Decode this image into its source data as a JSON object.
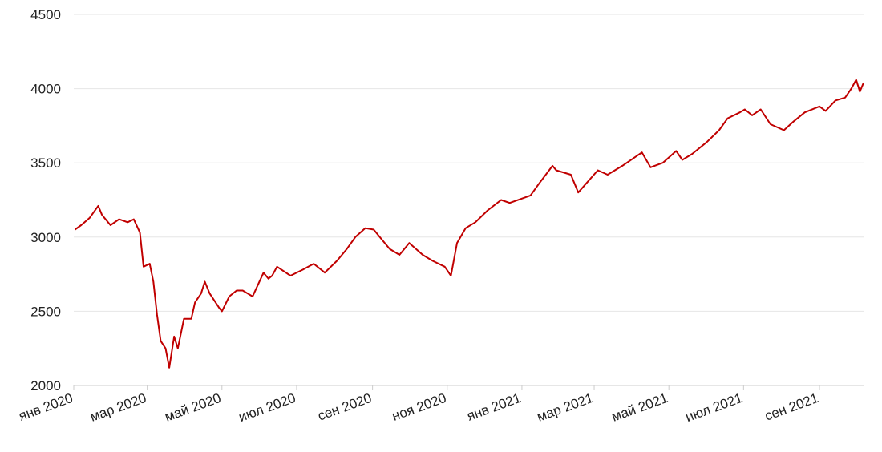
{
  "colors": {
    "series": "#c00000",
    "grid": "#e6e6e6",
    "axis": "#cccccc",
    "text": "#222222"
  },
  "chart_data": {
    "type": "line",
    "title": "",
    "xlabel": "",
    "ylabel": "",
    "ylim": [
      2000,
      4500
    ],
    "xlim": [
      "2020-01-01",
      "2021-10-07"
    ],
    "grid": true,
    "yticks": [
      {
        "value": 2000,
        "label": "2000"
      },
      {
        "value": 2500,
        "label": "2500"
      },
      {
        "value": 3000,
        "label": "3000"
      },
      {
        "value": 3500,
        "label": "3500"
      },
      {
        "value": 4000,
        "label": "4000"
      },
      {
        "value": 4500,
        "label": "4500"
      }
    ],
    "xticks": [
      {
        "value": "2020-01-01",
        "label": "янв 2020"
      },
      {
        "value": "2020-03-01",
        "label": "мар 2020"
      },
      {
        "value": "2020-05-01",
        "label": "май 2020"
      },
      {
        "value": "2020-07-01",
        "label": "июл 2020"
      },
      {
        "value": "2020-09-01",
        "label": "сен 2020"
      },
      {
        "value": "2020-11-01",
        "label": "ноя 2020"
      },
      {
        "value": "2021-01-01",
        "label": "янв 2021"
      },
      {
        "value": "2021-03-01",
        "label": "мар 2021"
      },
      {
        "value": "2021-05-01",
        "label": "май 2021"
      },
      {
        "value": "2021-07-01",
        "label": "июл 2021"
      },
      {
        "value": "2021-09-01",
        "label": "сен 2021"
      }
    ],
    "series": [
      {
        "x": [
          "2020-01-02",
          "2020-01-07",
          "2020-01-14",
          "2020-01-21",
          "2020-01-24",
          "2020-01-31",
          "2020-02-07",
          "2020-02-14",
          "2020-02-19",
          "2020-02-24",
          "2020-02-27",
          "2020-03-03",
          "2020-03-06",
          "2020-03-09",
          "2020-03-12",
          "2020-03-16",
          "2020-03-19",
          "2020-03-23",
          "2020-03-26",
          "2020-03-31",
          "2020-04-06",
          "2020-04-09",
          "2020-04-14",
          "2020-04-17",
          "2020-04-21",
          "2020-04-29",
          "2020-05-01",
          "2020-05-07",
          "2020-05-13",
          "2020-05-18",
          "2020-05-26",
          "2020-06-04",
          "2020-06-08",
          "2020-06-11",
          "2020-06-15",
          "2020-06-26",
          "2020-07-06",
          "2020-07-15",
          "2020-07-24",
          "2020-08-03",
          "2020-08-11",
          "2020-08-18",
          "2020-08-26",
          "2020-09-02",
          "2020-09-08",
          "2020-09-15",
          "2020-09-23",
          "2020-10-01",
          "2020-10-12",
          "2020-10-20",
          "2020-10-30",
          "2020-11-04",
          "2020-11-09",
          "2020-11-16",
          "2020-11-24",
          "2020-12-04",
          "2020-12-15",
          "2020-12-22",
          "2021-01-08",
          "2021-01-15",
          "2021-01-26",
          "2021-01-29",
          "2021-02-10",
          "2021-02-16",
          "2021-03-04",
          "2021-03-12",
          "2021-03-24",
          "2021-04-09",
          "2021-04-16",
          "2021-04-26",
          "2021-05-07",
          "2021-05-12",
          "2021-05-20",
          "2021-06-01",
          "2021-06-11",
          "2021-06-18",
          "2021-06-28",
          "2021-07-02",
          "2021-07-08",
          "2021-07-15",
          "2021-07-23",
          "2021-08-03",
          "2021-08-11",
          "2021-08-20",
          "2021-09-01",
          "2021-09-06",
          "2021-09-14",
          "2021-09-22",
          "2021-09-27",
          "2021-10-01",
          "2021-10-04",
          "2021-10-07"
        ],
        "y": [
          3050,
          3080,
          3130,
          3210,
          3150,
          3080,
          3120,
          3100,
          3120,
          3030,
          2800,
          2820,
          2700,
          2480,
          2300,
          2250,
          2120,
          2330,
          2250,
          2450,
          2450,
          2560,
          2620,
          2700,
          2620,
          2520,
          2500,
          2600,
          2640,
          2640,
          2600,
          2760,
          2720,
          2740,
          2800,
          2740,
          2780,
          2820,
          2760,
          2840,
          2920,
          3000,
          3060,
          3050,
          2990,
          2920,
          2880,
          2960,
          2880,
          2840,
          2800,
          2740,
          2960,
          3060,
          3100,
          3180,
          3250,
          3230,
          3280,
          3360,
          3480,
          3450,
          3420,
          3300,
          3450,
          3420,
          3480,
          3570,
          3470,
          3500,
          3580,
          3520,
          3560,
          3640,
          3720,
          3800,
          3840,
          3860,
          3820,
          3860,
          3760,
          3720,
          3780,
          3840,
          3880,
          3850,
          3920,
          3940,
          4000,
          4060,
          3980,
          4040
        ]
      }
    ]
  }
}
